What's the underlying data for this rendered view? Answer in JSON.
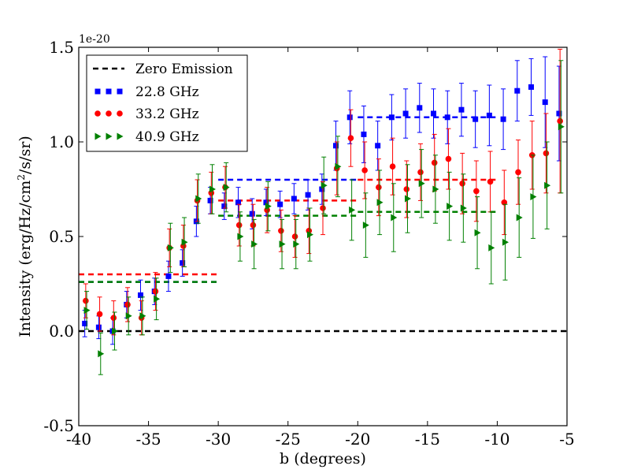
{
  "chart_data": {
    "type": "scatter",
    "title": "",
    "xlabel": "b (degrees)",
    "ylabel_prefix": "Intensity (erg/Hz/cm",
    "ylabel_sup": "2",
    "ylabel_suffix": "/s/sr)",
    "y_multiplier": "1e-20",
    "xlim": [
      -40,
      -5
    ],
    "ylim": [
      -0.5,
      1.5
    ],
    "xticks": [
      -40,
      -35,
      -30,
      -25,
      -20,
      -15,
      -10,
      -5
    ],
    "xtick_labels": [
      "-40",
      "-35",
      "-30",
      "-25",
      "-20",
      "-15",
      "-10",
      "-5"
    ],
    "yticks": [
      -0.5,
      0.0,
      0.5,
      1.0,
      1.5
    ],
    "ytick_labels": [
      "-0.5",
      "0.0",
      "0.5",
      "1.0",
      "1.5"
    ],
    "legend_position": "top-left",
    "reference_line": {
      "name": "Zero Emission",
      "y": 0.0,
      "color": "#000000"
    },
    "series": [
      {
        "name": "22.8 GHz",
        "color": "#0000ff",
        "marker": "square",
        "points": [
          {
            "x": -39.5,
            "y": 0.04,
            "err": 0.07
          },
          {
            "x": -38.5,
            "y": 0.02,
            "err": 0.06
          },
          {
            "x": -37.5,
            "y": 0.0,
            "err": 0.07
          },
          {
            "x": -36.5,
            "y": 0.14,
            "err": 0.07
          },
          {
            "x": -35.5,
            "y": 0.19,
            "err": 0.08
          },
          {
            "x": -34.5,
            "y": 0.21,
            "err": 0.07
          },
          {
            "x": -33.5,
            "y": 0.29,
            "err": 0.08
          },
          {
            "x": -32.5,
            "y": 0.36,
            "err": 0.07
          },
          {
            "x": -31.5,
            "y": 0.58,
            "err": 0.08
          },
          {
            "x": -30.5,
            "y": 0.69,
            "err": 0.07
          },
          {
            "x": -29.5,
            "y": 0.66,
            "err": 0.07
          },
          {
            "x": -28.5,
            "y": 0.68,
            "err": 0.08
          },
          {
            "x": -27.5,
            "y": 0.62,
            "err": 0.08
          },
          {
            "x": -26.5,
            "y": 0.68,
            "err": 0.07
          },
          {
            "x": -25.5,
            "y": 0.67,
            "err": 0.07
          },
          {
            "x": -24.5,
            "y": 0.7,
            "err": 0.08
          },
          {
            "x": -23.5,
            "y": 0.72,
            "err": 0.08
          },
          {
            "x": -22.5,
            "y": 0.75,
            "err": 0.08
          },
          {
            "x": -21.5,
            "y": 0.98,
            "err": 0.13
          },
          {
            "x": -20.5,
            "y": 1.13,
            "err": 0.14
          },
          {
            "x": -19.5,
            "y": 1.04,
            "err": 0.15
          },
          {
            "x": -18.5,
            "y": 0.98,
            "err": 0.13
          },
          {
            "x": -17.5,
            "y": 1.13,
            "err": 0.12
          },
          {
            "x": -16.5,
            "y": 1.15,
            "err": 0.13
          },
          {
            "x": -15.5,
            "y": 1.18,
            "err": 0.13
          },
          {
            "x": -14.5,
            "y": 1.15,
            "err": 0.13
          },
          {
            "x": -13.5,
            "y": 1.13,
            "err": 0.14
          },
          {
            "x": -12.5,
            "y": 1.17,
            "err": 0.14
          },
          {
            "x": -11.5,
            "y": 1.12,
            "err": 0.15
          },
          {
            "x": -10.5,
            "y": 1.14,
            "err": 0.16
          },
          {
            "x": -9.5,
            "y": 1.12,
            "err": 0.16
          },
          {
            "x": -8.5,
            "y": 1.27,
            "err": 0.16
          },
          {
            "x": -7.5,
            "y": 1.29,
            "err": 0.15
          },
          {
            "x": -6.5,
            "y": 1.21,
            "err": 0.24
          },
          {
            "x": -5.5,
            "y": 1.15,
            "err": 0.25
          }
        ],
        "levels": [
          {
            "x_start": -40,
            "x_end": -30,
            "y": 0.26
          },
          {
            "x_start": -30,
            "x_end": -20,
            "y": 0.8
          },
          {
            "x_start": -20,
            "x_end": -10,
            "y": 1.13
          }
        ]
      },
      {
        "name": "33.2 GHz",
        "color": "#ff0000",
        "marker": "circle",
        "points": [
          {
            "x": -39.5,
            "y": 0.16,
            "err": 0.09
          },
          {
            "x": -38.5,
            "y": 0.09,
            "err": 0.09
          },
          {
            "x": -37.5,
            "y": 0.07,
            "err": 0.09
          },
          {
            "x": -36.5,
            "y": 0.14,
            "err": 0.09
          },
          {
            "x": -35.5,
            "y": 0.07,
            "err": 0.09
          },
          {
            "x": -34.5,
            "y": 0.21,
            "err": 0.1
          },
          {
            "x": -33.5,
            "y": 0.44,
            "err": 0.1
          },
          {
            "x": -32.5,
            "y": 0.45,
            "err": 0.11
          },
          {
            "x": -31.5,
            "y": 0.69,
            "err": 0.11
          },
          {
            "x": -30.5,
            "y": 0.73,
            "err": 0.11
          },
          {
            "x": -29.5,
            "y": 0.76,
            "err": 0.11
          },
          {
            "x": -28.5,
            "y": 0.56,
            "err": 0.11
          },
          {
            "x": -27.5,
            "y": 0.56,
            "err": 0.11
          },
          {
            "x": -26.5,
            "y": 0.64,
            "err": 0.12
          },
          {
            "x": -25.5,
            "y": 0.53,
            "err": 0.11
          },
          {
            "x": -24.5,
            "y": 0.5,
            "err": 0.11
          },
          {
            "x": -23.5,
            "y": 0.53,
            "err": 0.12
          },
          {
            "x": -22.5,
            "y": 0.65,
            "err": 0.14
          },
          {
            "x": -21.5,
            "y": 0.86,
            "err": 0.14
          },
          {
            "x": -20.5,
            "y": 1.02,
            "err": 0.15
          },
          {
            "x": -19.5,
            "y": 0.85,
            "err": 0.15
          },
          {
            "x": -18.5,
            "y": 0.76,
            "err": 0.15
          },
          {
            "x": -17.5,
            "y": 0.87,
            "err": 0.15
          },
          {
            "x": -16.5,
            "y": 0.75,
            "err": 0.15
          },
          {
            "x": -15.5,
            "y": 0.84,
            "err": 0.15
          },
          {
            "x": -14.5,
            "y": 0.89,
            "err": 0.15
          },
          {
            "x": -13.5,
            "y": 0.91,
            "err": 0.16
          },
          {
            "x": -12.5,
            "y": 0.78,
            "err": 0.16
          },
          {
            "x": -11.5,
            "y": 0.74,
            "err": 0.16
          },
          {
            "x": -10.5,
            "y": 0.79,
            "err": 0.16
          },
          {
            "x": -9.5,
            "y": 0.68,
            "err": 0.17
          },
          {
            "x": -8.5,
            "y": 0.84,
            "err": 0.17
          },
          {
            "x": -7.5,
            "y": 0.93,
            "err": 0.18
          },
          {
            "x": -6.5,
            "y": 0.94,
            "err": 0.21
          },
          {
            "x": -5.5,
            "y": 1.11,
            "err": 0.38
          }
        ],
        "levels": [
          {
            "x_start": -40,
            "x_end": -30,
            "y": 0.3
          },
          {
            "x_start": -30,
            "x_end": -20,
            "y": 0.69
          },
          {
            "x_start": -20,
            "x_end": -10,
            "y": 0.8
          }
        ]
      },
      {
        "name": "40.9 GHz",
        "color": "#008000",
        "marker": "triangle-right",
        "points": [
          {
            "x": -39.5,
            "y": 0.11,
            "err": 0.1
          },
          {
            "x": -38.5,
            "y": -0.12,
            "err": 0.11
          },
          {
            "x": -37.5,
            "y": 0.0,
            "err": 0.1
          },
          {
            "x": -36.5,
            "y": 0.08,
            "err": 0.1
          },
          {
            "x": -35.5,
            "y": 0.08,
            "err": 0.1
          },
          {
            "x": -34.5,
            "y": 0.17,
            "err": 0.11
          },
          {
            "x": -33.5,
            "y": 0.44,
            "err": 0.13
          },
          {
            "x": -32.5,
            "y": 0.47,
            "err": 0.13
          },
          {
            "x": -31.5,
            "y": 0.7,
            "err": 0.13
          },
          {
            "x": -30.5,
            "y": 0.75,
            "err": 0.13
          },
          {
            "x": -29.5,
            "y": 0.76,
            "err": 0.13
          },
          {
            "x": -28.5,
            "y": 0.5,
            "err": 0.13
          },
          {
            "x": -27.5,
            "y": 0.46,
            "err": 0.13
          },
          {
            "x": -26.5,
            "y": 0.66,
            "err": 0.13
          },
          {
            "x": -25.5,
            "y": 0.46,
            "err": 0.13
          },
          {
            "x": -24.5,
            "y": 0.46,
            "err": 0.13
          },
          {
            "x": -23.5,
            "y": 0.51,
            "err": 0.14
          },
          {
            "x": -22.5,
            "y": 0.77,
            "err": 0.15
          },
          {
            "x": -21.5,
            "y": 0.87,
            "err": 0.16
          },
          {
            "x": -20.5,
            "y": 0.64,
            "err": 0.16
          },
          {
            "x": -19.5,
            "y": 0.56,
            "err": 0.17
          },
          {
            "x": -18.5,
            "y": 0.68,
            "err": 0.17
          },
          {
            "x": -17.5,
            "y": 0.6,
            "err": 0.18
          },
          {
            "x": -16.5,
            "y": 0.7,
            "err": 0.18
          },
          {
            "x": -15.5,
            "y": 0.78,
            "err": 0.18
          },
          {
            "x": -14.5,
            "y": 0.75,
            "err": 0.18
          },
          {
            "x": -13.5,
            "y": 0.66,
            "err": 0.18
          },
          {
            "x": -12.5,
            "y": 0.65,
            "err": 0.18
          },
          {
            "x": -11.5,
            "y": 0.52,
            "err": 0.19
          },
          {
            "x": -10.5,
            "y": 0.44,
            "err": 0.19
          },
          {
            "x": -9.5,
            "y": 0.47,
            "err": 0.2
          },
          {
            "x": -8.5,
            "y": 0.6,
            "err": 0.21
          },
          {
            "x": -7.5,
            "y": 0.71,
            "err": 0.22
          },
          {
            "x": -6.5,
            "y": 0.77,
            "err": 0.23
          },
          {
            "x": -5.5,
            "y": 1.08,
            "err": 0.35
          }
        ],
        "levels": [
          {
            "x_start": -40,
            "x_end": -30,
            "y": 0.26
          },
          {
            "x_start": -30,
            "x_end": -20,
            "y": 0.61
          },
          {
            "x_start": -20,
            "x_end": -10,
            "y": 0.63
          }
        ]
      }
    ]
  }
}
